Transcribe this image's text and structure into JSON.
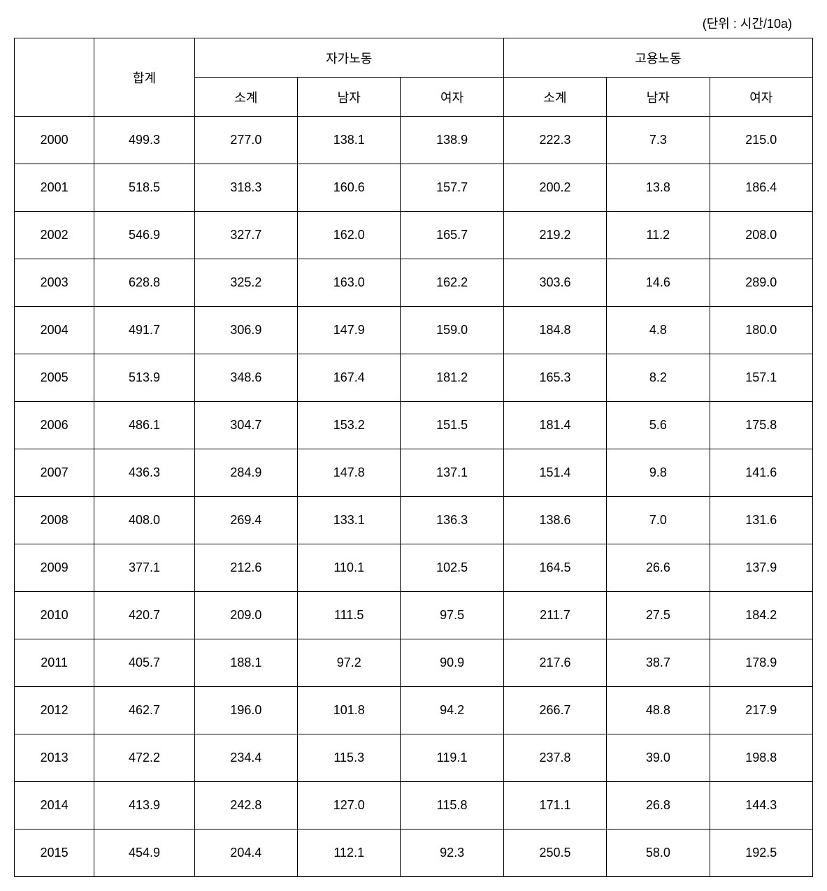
{
  "unit_label": "(단위 : 시간/10a)",
  "headers": {
    "total": "합계",
    "group1": "자가노동",
    "group2": "고용노동",
    "subtotal": "소계",
    "male": "남자",
    "female": "여자"
  },
  "rows": [
    {
      "year": "2000",
      "total": "499.3",
      "g1_sub": "277.0",
      "g1_m": "138.1",
      "g1_f": "138.9",
      "g2_sub": "222.3",
      "g2_m": "7.3",
      "g2_f": "215.0"
    },
    {
      "year": "2001",
      "total": "518.5",
      "g1_sub": "318.3",
      "g1_m": "160.6",
      "g1_f": "157.7",
      "g2_sub": "200.2",
      "g2_m": "13.8",
      "g2_f": "186.4"
    },
    {
      "year": "2002",
      "total": "546.9",
      "g1_sub": "327.7",
      "g1_m": "162.0",
      "g1_f": "165.7",
      "g2_sub": "219.2",
      "g2_m": "11.2",
      "g2_f": "208.0"
    },
    {
      "year": "2003",
      "total": "628.8",
      "g1_sub": "325.2",
      "g1_m": "163.0",
      "g1_f": "162.2",
      "g2_sub": "303.6",
      "g2_m": "14.6",
      "g2_f": "289.0"
    },
    {
      "year": "2004",
      "total": "491.7",
      "g1_sub": "306.9",
      "g1_m": "147.9",
      "g1_f": "159.0",
      "g2_sub": "184.8",
      "g2_m": "4.8",
      "g2_f": "180.0"
    },
    {
      "year": "2005",
      "total": "513.9",
      "g1_sub": "348.6",
      "g1_m": "167.4",
      "g1_f": "181.2",
      "g2_sub": "165.3",
      "g2_m": "8.2",
      "g2_f": "157.1"
    },
    {
      "year": "2006",
      "total": "486.1",
      "g1_sub": "304.7",
      "g1_m": "153.2",
      "g1_f": "151.5",
      "g2_sub": "181.4",
      "g2_m": "5.6",
      "g2_f": "175.8"
    },
    {
      "year": "2007",
      "total": "436.3",
      "g1_sub": "284.9",
      "g1_m": "147.8",
      "g1_f": "137.1",
      "g2_sub": "151.4",
      "g2_m": "9.8",
      "g2_f": "141.6"
    },
    {
      "year": "2008",
      "total": "408.0",
      "g1_sub": "269.4",
      "g1_m": "133.1",
      "g1_f": "136.3",
      "g2_sub": "138.6",
      "g2_m": "7.0",
      "g2_f": "131.6"
    },
    {
      "year": "2009",
      "total": "377.1",
      "g1_sub": "212.6",
      "g1_m": "110.1",
      "g1_f": "102.5",
      "g2_sub": "164.5",
      "g2_m": "26.6",
      "g2_f": "137.9"
    },
    {
      "year": "2010",
      "total": "420.7",
      "g1_sub": "209.0",
      "g1_m": "111.5",
      "g1_f": "97.5",
      "g2_sub": "211.7",
      "g2_m": "27.5",
      "g2_f": "184.2"
    },
    {
      "year": "2011",
      "total": "405.7",
      "g1_sub": "188.1",
      "g1_m": "97.2",
      "g1_f": "90.9",
      "g2_sub": "217.6",
      "g2_m": "38.7",
      "g2_f": "178.9"
    },
    {
      "year": "2012",
      "total": "462.7",
      "g1_sub": "196.0",
      "g1_m": "101.8",
      "g1_f": "94.2",
      "g2_sub": "266.7",
      "g2_m": "48.8",
      "g2_f": "217.9"
    },
    {
      "year": "2013",
      "total": "472.2",
      "g1_sub": "234.4",
      "g1_m": "115.3",
      "g1_f": "119.1",
      "g2_sub": "237.8",
      "g2_m": "39.0",
      "g2_f": "198.8"
    },
    {
      "year": "2014",
      "total": "413.9",
      "g1_sub": "242.8",
      "g1_m": "127.0",
      "g1_f": "115.8",
      "g2_sub": "171.1",
      "g2_m": "26.8",
      "g2_f": "144.3"
    },
    {
      "year": "2015",
      "total": "454.9",
      "g1_sub": "204.4",
      "g1_m": "112.1",
      "g1_f": "92.3",
      "g2_sub": "250.5",
      "g2_m": "58.0",
      "g2_f": "192.5"
    }
  ]
}
